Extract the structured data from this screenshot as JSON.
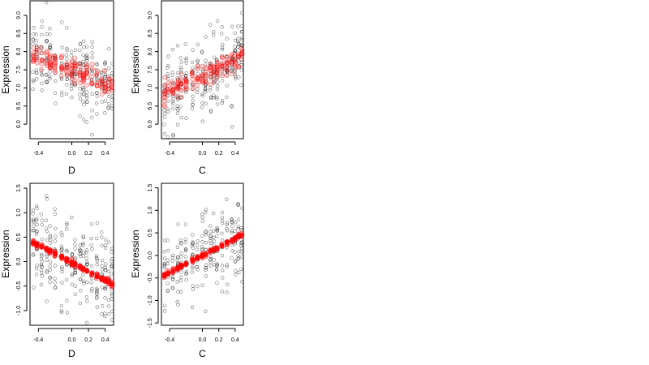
{
  "chart_data": [
    {
      "type": "scatter",
      "xlabel": "D",
      "ylabel": "Expression",
      "xlim": [
        -0.5,
        0.5
      ],
      "ylim": [
        5.6,
        9.4
      ],
      "xticks": [
        -0.4,
        0.0,
        0.2,
        0.4
      ],
      "xtick_labels": [
        "-0.4",
        "0.0",
        "0.2",
        "0.4"
      ],
      "yticks": [
        6.0,
        6.5,
        7.0,
        7.5,
        8.0,
        8.5,
        9.0
      ],
      "ytick_labels": [
        "6.0",
        "6.5",
        "7.0",
        "7.5",
        "8.0",
        "8.5",
        "9.0"
      ],
      "slope": -1.0,
      "intercept": 7.5,
      "spread": 0.55,
      "seed": 11,
      "series": [
        {
          "role": "observed",
          "color": "#000000"
        },
        {
          "role": "fitted",
          "color": "#ff0000"
        }
      ]
    },
    {
      "type": "scatter",
      "xlabel": "C",
      "ylabel": "Expression",
      "xlim": [
        -0.5,
        0.5
      ],
      "ylim": [
        5.6,
        9.4
      ],
      "xticks": [
        -0.4,
        0.0,
        0.2,
        0.4
      ],
      "xtick_labels": [
        "-0.4",
        "0.0",
        "0.2",
        "0.4"
      ],
      "yticks": [
        6.0,
        6.5,
        7.0,
        7.5,
        8.0,
        8.5,
        9.0
      ],
      "ytick_labels": [
        "6.0",
        "6.5",
        "7.0",
        "7.5",
        "8.0",
        "8.5",
        "9.0"
      ],
      "slope": 1.1,
      "intercept": 7.35,
      "spread": 0.5,
      "seed": 23,
      "series": [
        {
          "role": "observed",
          "color": "#000000"
        },
        {
          "role": "fitted",
          "color": "#ff0000"
        }
      ]
    },
    {
      "type": "scatter",
      "xlabel": "D",
      "ylabel": "Expression",
      "xlim": [
        -0.5,
        0.5
      ],
      "ylim": [
        -1.3,
        1.6
      ],
      "xticks": [
        -0.4,
        0.0,
        0.2,
        0.4
      ],
      "xtick_labels": [
        "-0.4",
        "0.0",
        "0.2",
        "0.4"
      ],
      "yticks": [
        -1.0,
        -0.5,
        0.0,
        0.5,
        1.0,
        1.5
      ],
      "ytick_labels": [
        "-1.0",
        "-0.5",
        "0.0",
        "0.5",
        "1.0",
        "1.5"
      ],
      "slope": -0.9,
      "intercept": -0.02,
      "spread": 0.45,
      "seed": 37,
      "series": [
        {
          "role": "observed",
          "color": "#000000"
        },
        {
          "role": "fitted",
          "color": "#ff0000"
        }
      ]
    },
    {
      "type": "scatter",
      "xlabel": "C",
      "ylabel": "Expression",
      "xlim": [
        -0.5,
        0.5
      ],
      "ylim": [
        -1.55,
        1.6
      ],
      "xticks": [
        -0.4,
        0.0,
        0.2,
        0.4
      ],
      "xtick_labels": [
        "-0.4",
        "0.0",
        "0.2",
        "0.4"
      ],
      "yticks": [
        -1.5,
        -1.0,
        -0.5,
        0.0,
        0.5,
        1.0,
        1.5
      ],
      "ytick_labels": [
        "-1.5",
        "-1.0",
        "-0.5",
        "0.0",
        "0.5",
        "1.0",
        "1.5"
      ],
      "slope": 0.95,
      "intercept": 0.0,
      "spread": 0.45,
      "seed": 53,
      "series": [
        {
          "role": "observed",
          "color": "#000000"
        },
        {
          "role": "fitted",
          "color": "#ff0000"
        }
      ]
    }
  ]
}
